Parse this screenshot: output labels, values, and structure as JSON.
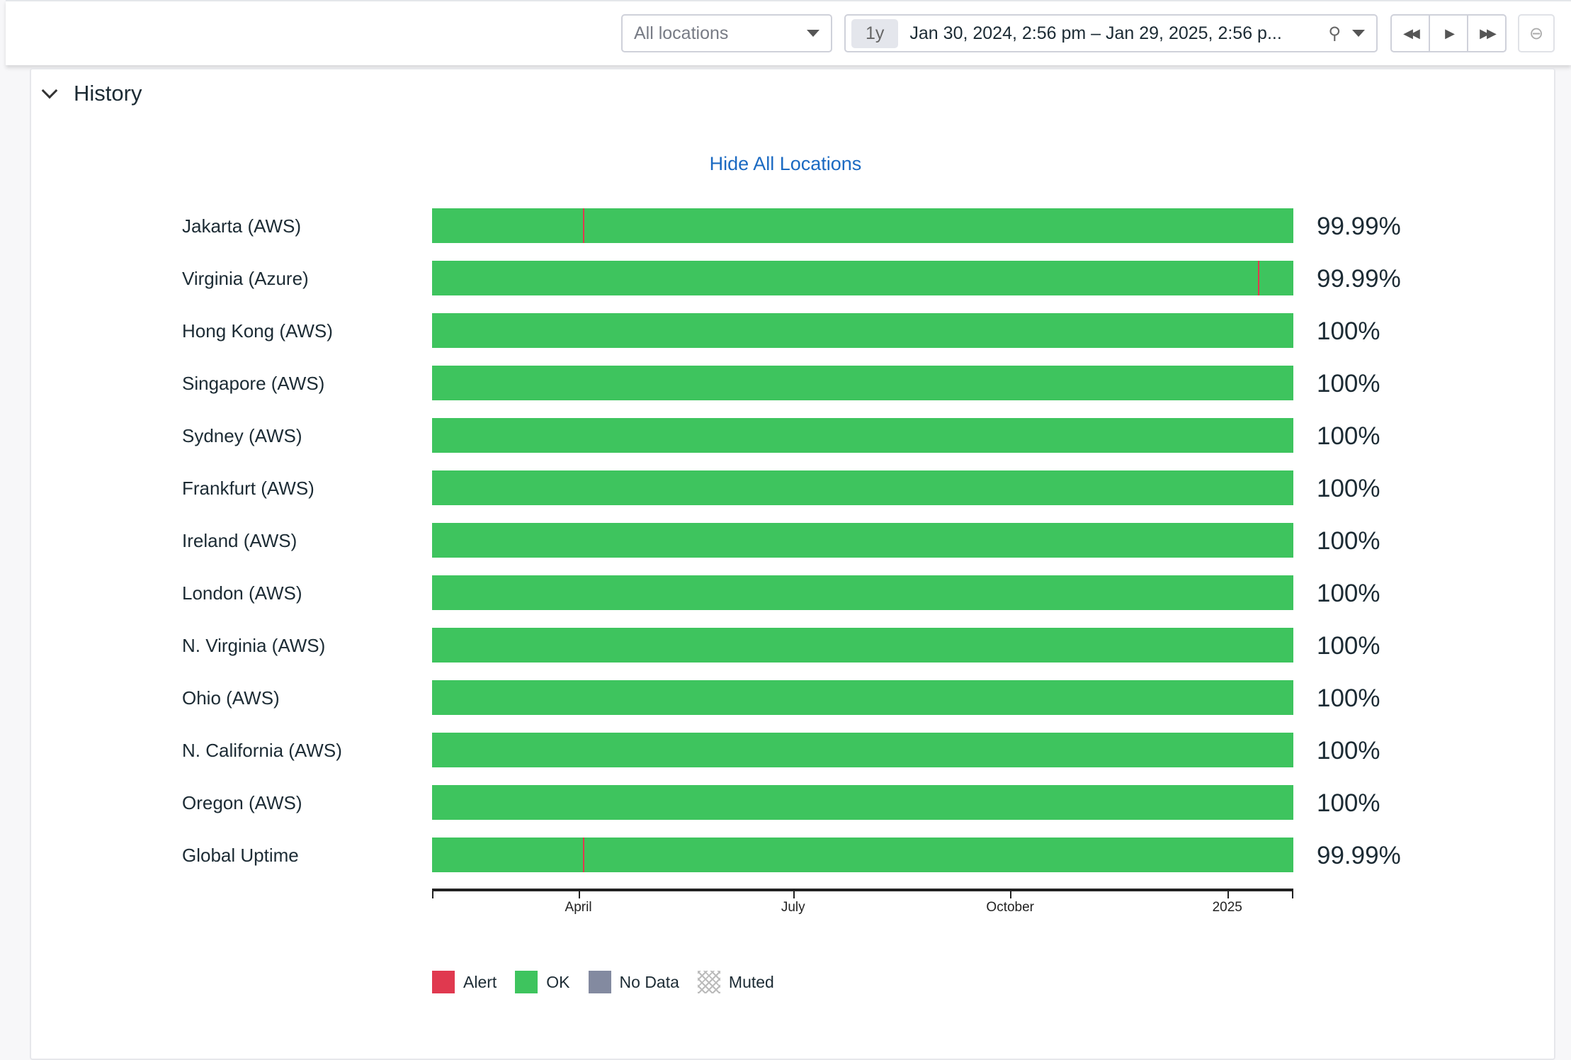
{
  "toolbar": {
    "location_select": "All locations",
    "range_preset": "1y",
    "range_text": "Jan 30, 2024, 2:56 pm – Jan 29, 2025, 2:56 p...",
    "pin_icon": "pin-icon",
    "rewind_icon": "rewind-icon",
    "play_icon": "play-icon",
    "forward_icon": "fast-forward-icon",
    "zoom_out_icon": "zoom-out-icon"
  },
  "panel": {
    "title": "History",
    "hide_all": "Hide All Locations"
  },
  "colors": {
    "ok": "#3ec45e",
    "alert": "#e0394f",
    "nodata": "#838aa0",
    "link": "#1b6ac2"
  },
  "chart_data": {
    "type": "timeline",
    "x_start": "2024-01-30",
    "x_end": "2025-01-29",
    "ticks": [
      {
        "label": "April",
        "date": "2024-04-01"
      },
      {
        "label": "July",
        "date": "2024-07-01"
      },
      {
        "label": "October",
        "date": "2024-10-01"
      },
      {
        "label": "2025",
        "date": "2025-01-01"
      }
    ],
    "rows": [
      {
        "name": "Jakarta (AWS)",
        "uptime": "99.99%",
        "alerts": [
          "2024-04-03"
        ]
      },
      {
        "name": "Virginia (Azure)",
        "uptime": "99.99%",
        "alerts": [
          "2025-01-14"
        ]
      },
      {
        "name": "Hong Kong (AWS)",
        "uptime": "100%",
        "alerts": []
      },
      {
        "name": "Singapore (AWS)",
        "uptime": "100%",
        "alerts": []
      },
      {
        "name": "Sydney (AWS)",
        "uptime": "100%",
        "alerts": []
      },
      {
        "name": "Frankfurt (AWS)",
        "uptime": "100%",
        "alerts": []
      },
      {
        "name": "Ireland (AWS)",
        "uptime": "100%",
        "alerts": []
      },
      {
        "name": "London (AWS)",
        "uptime": "100%",
        "alerts": []
      },
      {
        "name": "N. Virginia (AWS)",
        "uptime": "100%",
        "alerts": []
      },
      {
        "name": "Ohio (AWS)",
        "uptime": "100%",
        "alerts": []
      },
      {
        "name": "N. California (AWS)",
        "uptime": "100%",
        "alerts": []
      },
      {
        "name": "Oregon (AWS)",
        "uptime": "100%",
        "alerts": []
      },
      {
        "name": "Global Uptime",
        "uptime": "99.99%",
        "alerts": [
          "2024-04-03"
        ]
      }
    ],
    "legend": [
      {
        "label": "Alert",
        "color": "#e0394f"
      },
      {
        "label": "OK",
        "color": "#3ec45e"
      },
      {
        "label": "No Data",
        "color": "#838aa0"
      },
      {
        "label": "Muted",
        "color": "pattern"
      }
    ]
  }
}
